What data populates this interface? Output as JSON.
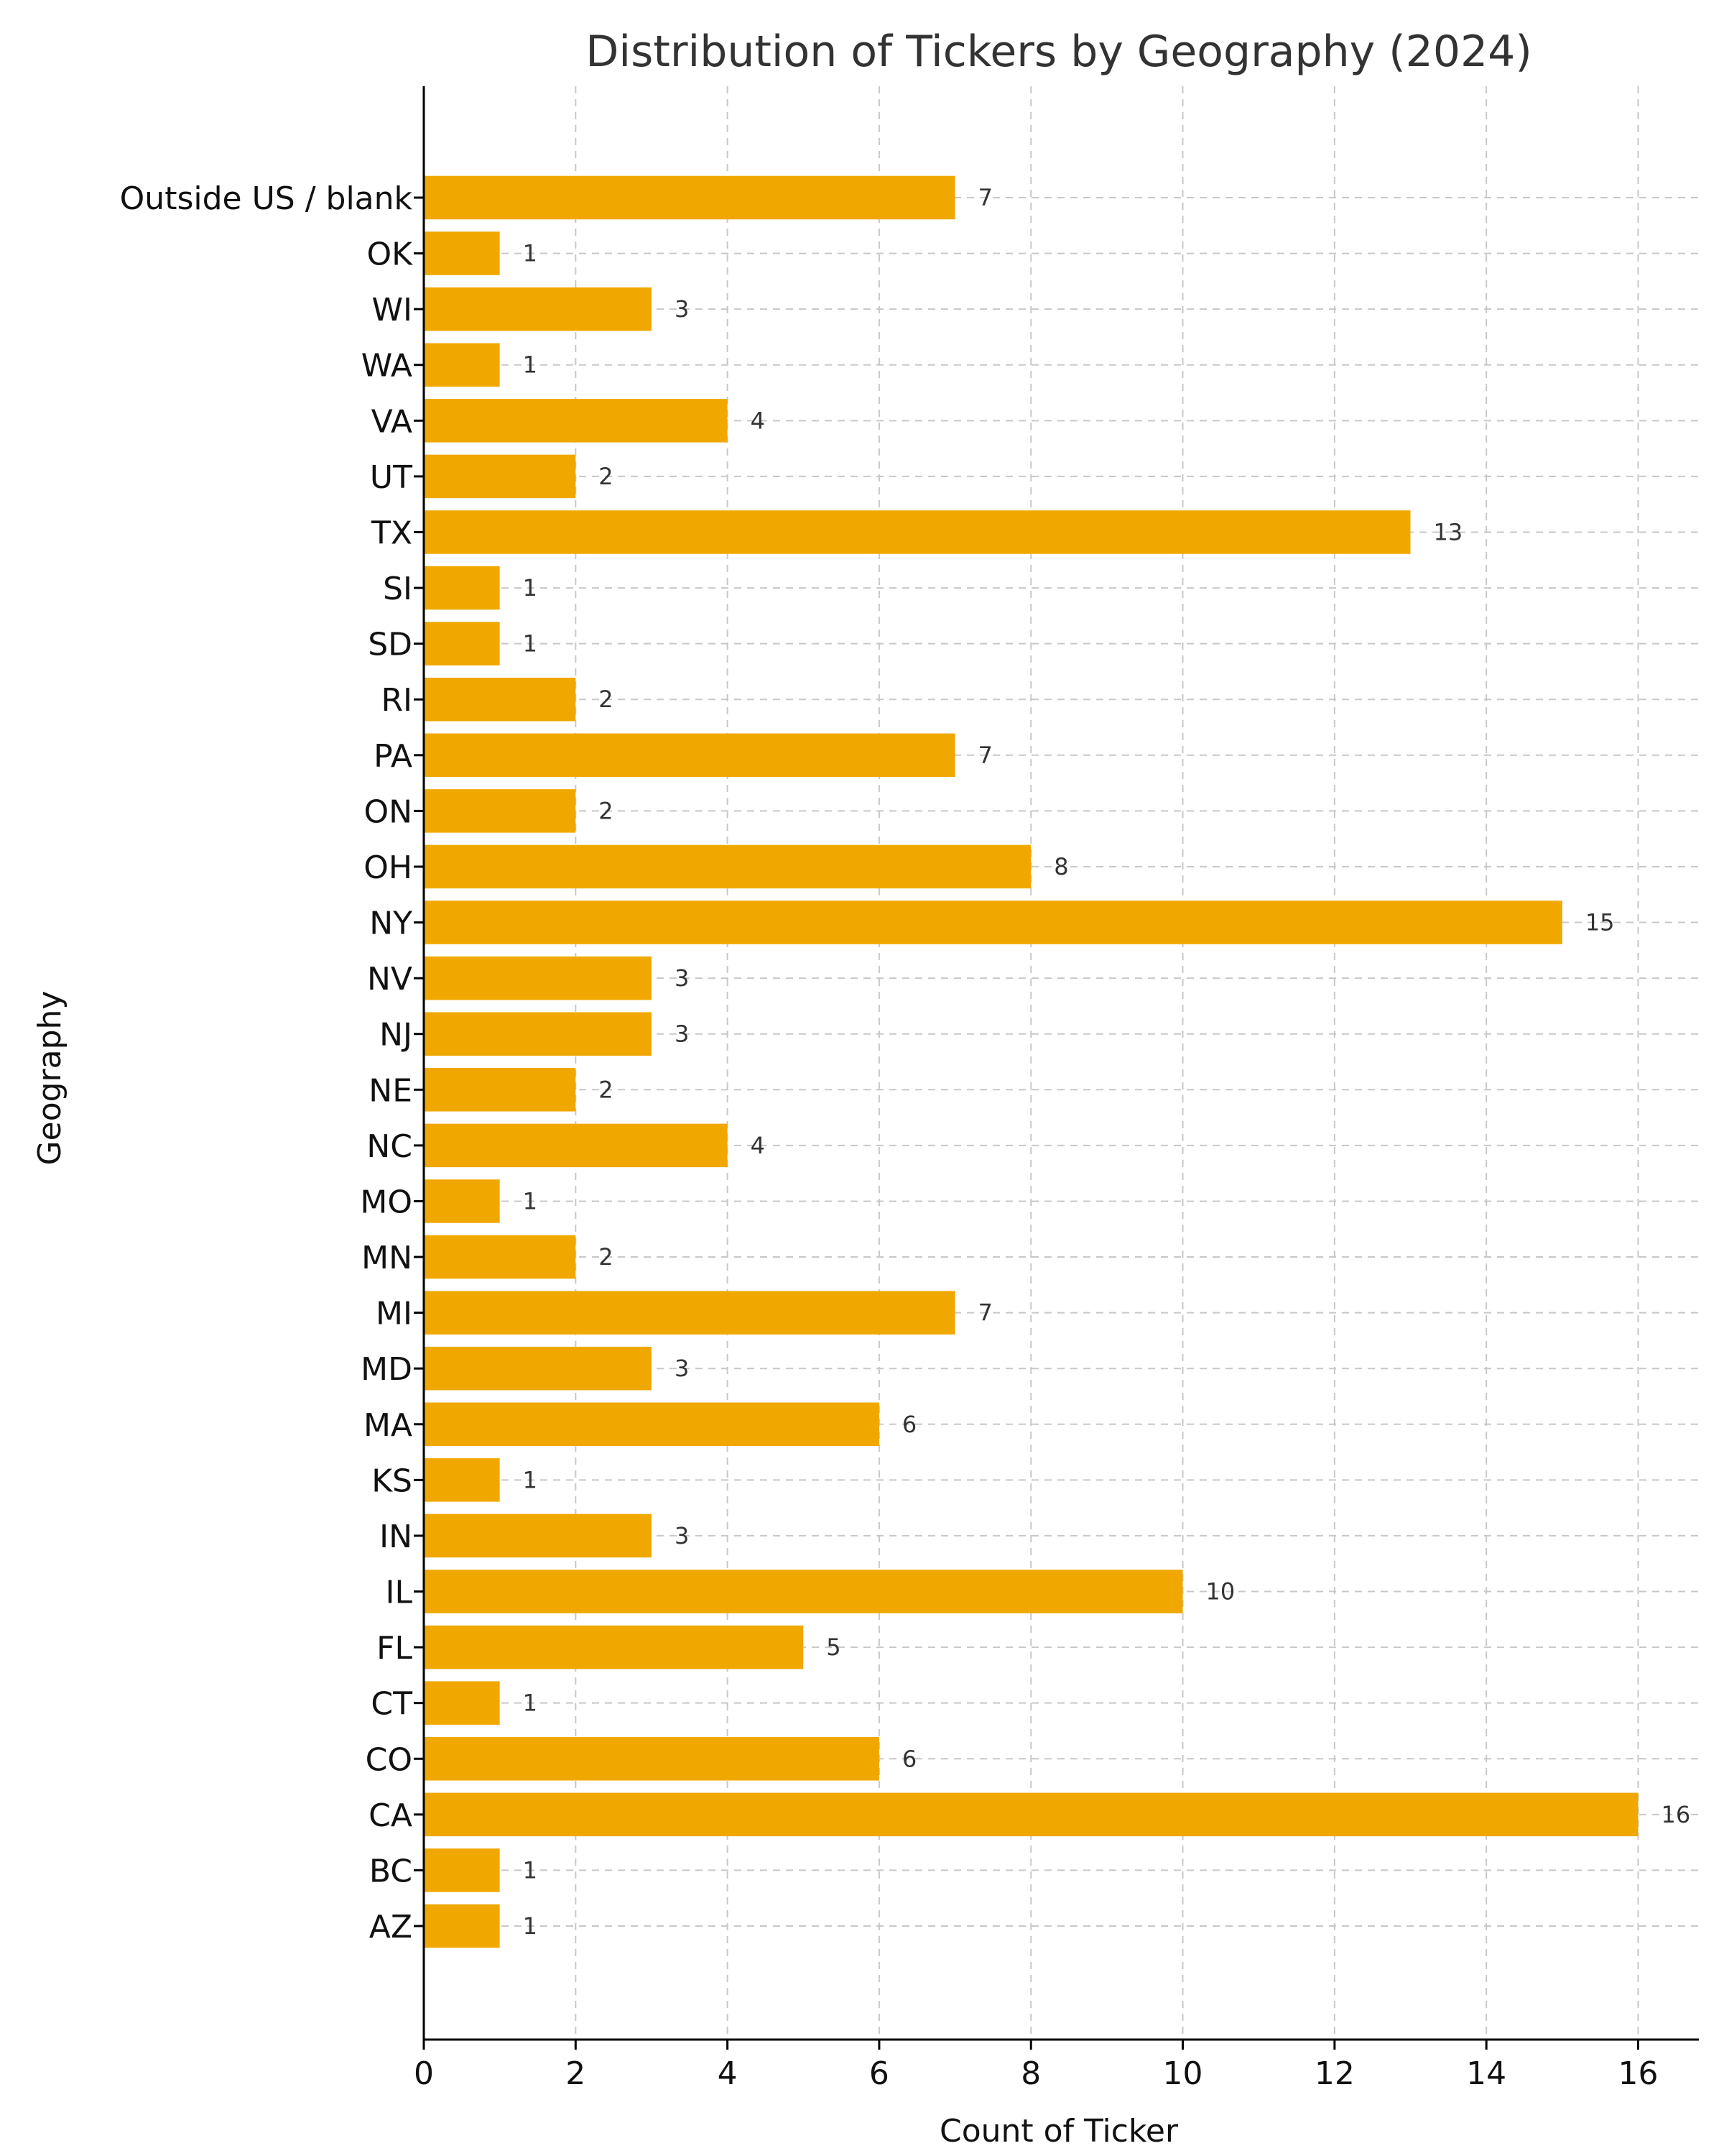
{
  "chart_data": {
    "type": "bar",
    "orientation": "horizontal",
    "title": "Distribution of Tickers by Geography (2024)",
    "xlabel": "Count of Ticker",
    "ylabel": "Geography",
    "xlim": [
      0,
      16.8
    ],
    "xticks": [
      0,
      2,
      4,
      6,
      8,
      10,
      12,
      14,
      16
    ],
    "grid": true,
    "bar_color": "#f0a800",
    "categories": [
      "AZ",
      "BC",
      "CA",
      "CO",
      "CT",
      "FL",
      "IL",
      "IN",
      "KS",
      "MA",
      "MD",
      "MI",
      "MN",
      "MO",
      "NC",
      "NE",
      "NJ",
      "NV",
      "NY",
      "OH",
      "ON",
      "PA",
      "RI",
      "SD",
      "SI",
      "TX",
      "UT",
      "VA",
      "WA",
      "WI",
      "OK",
      "Outside US / blank"
    ],
    "values": [
      1,
      1,
      16,
      6,
      1,
      5,
      10,
      3,
      1,
      6,
      3,
      7,
      2,
      1,
      4,
      2,
      3,
      3,
      15,
      8,
      2,
      7,
      2,
      1,
      1,
      13,
      2,
      4,
      1,
      3,
      1,
      7
    ]
  }
}
